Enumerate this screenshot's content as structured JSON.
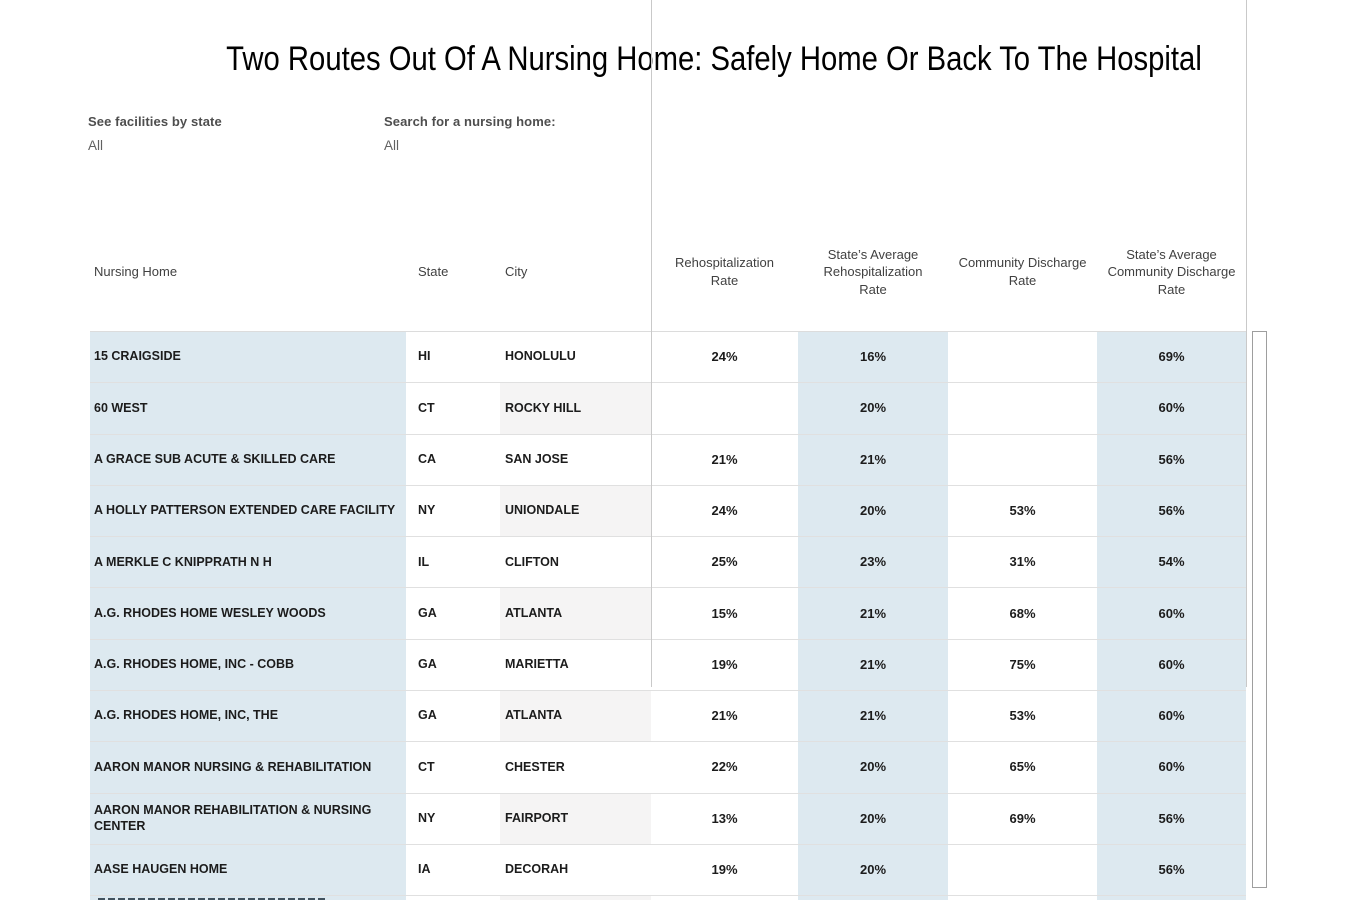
{
  "title": "Two Routes Out Of A Nursing Home: Safely Home Or Back To The Hospital",
  "filters": [
    {
      "label": "See facilities by state",
      "value": "All"
    },
    {
      "label": "Search for a nursing home:",
      "value": "All"
    }
  ],
  "chart_data": {
    "type": "table",
    "columns": [
      "Nursing Home",
      "State",
      "City",
      "Rehospitalization Rate",
      "State’s Average Rehospitalization Rate",
      "Community Discharge Rate",
      "State’s Average Community Discharge Rate"
    ],
    "rows": [
      [
        "15 CRAIGSIDE",
        "HI",
        "HONOLULU",
        "24%",
        "16%",
        "",
        "69%"
      ],
      [
        "60 WEST",
        "CT",
        "ROCKY HILL",
        "",
        "20%",
        "",
        "60%"
      ],
      [
        "A GRACE SUB ACUTE & SKILLED CARE",
        "CA",
        "SAN JOSE",
        "21%",
        "21%",
        "",
        "56%"
      ],
      [
        "A HOLLY PATTERSON EXTENDED CARE FACILITY",
        "NY",
        "UNIONDALE",
        "24%",
        "20%",
        "53%",
        "56%"
      ],
      [
        "A MERKLE C KNIPPRATH N H",
        "IL",
        "CLIFTON",
        "25%",
        "23%",
        "31%",
        "54%"
      ],
      [
        "A.G. RHODES HOME WESLEY WOODS",
        "GA",
        "ATLANTA",
        "15%",
        "21%",
        "68%",
        "60%"
      ],
      [
        "A.G. RHODES HOME, INC - COBB",
        "GA",
        "MARIETTA",
        "19%",
        "21%",
        "75%",
        "60%"
      ],
      [
        "A.G. RHODES HOME, INC, THE",
        "GA",
        "ATLANTA",
        "21%",
        "21%",
        "53%",
        "60%"
      ],
      [
        "AARON MANOR NURSING & REHABILITATION",
        "CT",
        "CHESTER",
        "22%",
        "20%",
        "65%",
        "60%"
      ],
      [
        "AARON MANOR REHABILITATION & NURSING CENTER",
        "NY",
        "FAIRPORT",
        "13%",
        "20%",
        "69%",
        "56%"
      ],
      [
        "AASE HAUGEN HOME",
        "IA",
        "DECORAH",
        "19%",
        "20%",
        "",
        "56%"
      ]
    ],
    "layout": {
      "banding": "city column alternates gray on even rows",
      "highlight_columns_blue": [
        "Nursing Home",
        "State’s Average Rehospitalization Rate",
        "State’s Average Community Discharge Rate"
      ]
    }
  },
  "colors": {
    "band_blue": "#dde9f0",
    "band_gray": "#f5f4f4",
    "row_line": "#e0e0e0",
    "axis_line": "#c9c9c9",
    "header_text": "#414141",
    "cell_text": "#1c1c1c"
  }
}
